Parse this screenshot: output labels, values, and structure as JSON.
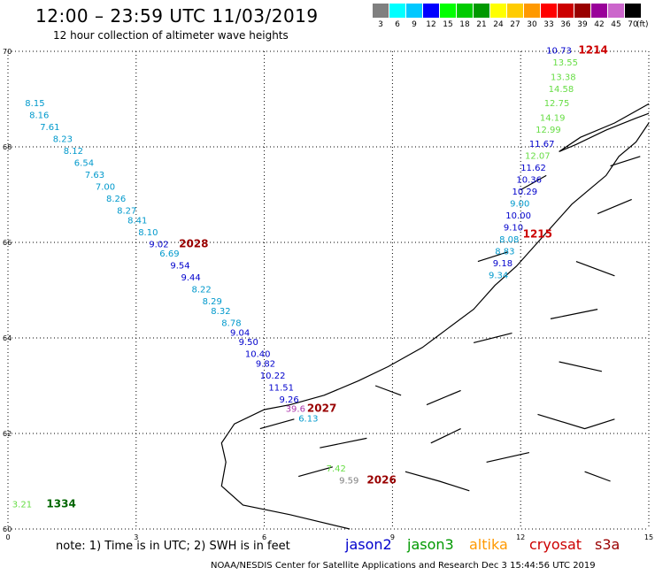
{
  "header": {
    "title": "12:00 – 23:59 UTC 11/03/2019",
    "subtitle": "12 hour collection of altimeter wave heights"
  },
  "legend": {
    "unit_label": "(ft)",
    "bins": [
      {
        "label": "3",
        "color": "#808080"
      },
      {
        "label": "6",
        "color": "#00ffff"
      },
      {
        "label": "9",
        "color": "#00c8ff"
      },
      {
        "label": "12",
        "color": "#0000ff"
      },
      {
        "label": "15",
        "color": "#00ff00"
      },
      {
        "label": "18",
        "color": "#00cc00"
      },
      {
        "label": "21",
        "color": "#009900"
      },
      {
        "label": "24",
        "color": "#ffff00"
      },
      {
        "label": "27",
        "color": "#ffcc00"
      },
      {
        "label": "30",
        "color": "#ff9900"
      },
      {
        "label": "33",
        "color": "#ff0000"
      },
      {
        "label": "36",
        "color": "#cc0000"
      },
      {
        "label": "39",
        "color": "#990000"
      },
      {
        "label": "42",
        "color": "#990099"
      },
      {
        "label": "45",
        "color": "#cc66cc"
      },
      {
        "label": "70",
        "color": "#000000"
      }
    ]
  },
  "axes": {
    "x_ticks": [
      "0",
      "3",
      "6",
      "9",
      "12",
      "15"
    ],
    "y_ticks": [
      "60",
      "62",
      "64",
      "66",
      "68",
      "70"
    ],
    "lon_range": [
      0,
      15
    ],
    "lat_range": [
      60,
      70
    ]
  },
  "tracks": {
    "pass_west": {
      "color": "#0099cc",
      "points": [
        {
          "lon": 0.4,
          "lat": 68.85,
          "v": "8.15",
          "color": "#0099cc"
        },
        {
          "lon": 0.5,
          "lat": 68.6,
          "v": "8.16",
          "color": "#0099cc"
        },
        {
          "lon": 0.75,
          "lat": 68.35,
          "v": "7.61",
          "color": "#0099cc"
        },
        {
          "lon": 1.05,
          "lat": 68.1,
          "v": "8.23",
          "color": "#0099cc"
        },
        {
          "lon": 1.3,
          "lat": 67.85,
          "v": "8.12",
          "color": "#0099cc"
        },
        {
          "lon": 1.55,
          "lat": 67.6,
          "v": "6.54",
          "color": "#0099cc"
        },
        {
          "lon": 1.8,
          "lat": 67.35,
          "v": "7.63",
          "color": "#0099cc"
        },
        {
          "lon": 2.05,
          "lat": 67.1,
          "v": "7.00",
          "color": "#0099cc"
        },
        {
          "lon": 2.3,
          "lat": 66.85,
          "v": "8.26",
          "color": "#0099cc"
        },
        {
          "lon": 2.55,
          "lat": 66.6,
          "v": "8.27",
          "color": "#0099cc"
        },
        {
          "lon": 2.8,
          "lat": 66.4,
          "v": "8.41",
          "color": "#0099cc"
        },
        {
          "lon": 3.05,
          "lat": 66.15,
          "v": "8.10",
          "color": "#0099cc"
        },
        {
          "lon": 3.3,
          "lat": 65.9,
          "v": "9.02",
          "color": "#0000cc"
        },
        {
          "lon": 3.55,
          "lat": 65.7,
          "v": "6.69",
          "color": "#0099cc"
        },
        {
          "lon": 3.8,
          "lat": 65.45,
          "v": "9.54",
          "color": "#0000cc"
        },
        {
          "lon": 4.05,
          "lat": 65.2,
          "v": "9.44",
          "color": "#0000cc"
        },
        {
          "lon": 4.3,
          "lat": 64.95,
          "v": "8.22",
          "color": "#0099cc"
        },
        {
          "lon": 4.55,
          "lat": 64.7,
          "v": "8.29",
          "color": "#0099cc"
        },
        {
          "lon": 4.75,
          "lat": 64.5,
          "v": "8.32",
          "color": "#0099cc"
        },
        {
          "lon": 5.0,
          "lat": 64.25,
          "v": "8.78",
          "color": "#0099cc"
        },
        {
          "lon": 5.2,
          "lat": 64.05,
          "v": "9.04",
          "color": "#0000cc"
        },
        {
          "lon": 5.4,
          "lat": 63.85,
          "v": "9.50",
          "color": "#0000cc"
        },
        {
          "lon": 5.55,
          "lat": 63.6,
          "v": "10.40",
          "color": "#0000cc"
        },
        {
          "lon": 5.8,
          "lat": 63.4,
          "v": "9.82",
          "color": "#0000cc"
        },
        {
          "lon": 5.9,
          "lat": 63.15,
          "v": "10.22",
          "color": "#0000cc"
        },
        {
          "lon": 6.1,
          "lat": 62.9,
          "v": "11.51",
          "color": "#0000cc"
        },
        {
          "lon": 6.35,
          "lat": 62.65,
          "v": "9.26",
          "color": "#0000cc"
        },
        {
          "lon": 6.5,
          "lat": 62.45,
          "v": "39.6",
          "color": "#aa33aa"
        },
        {
          "lon": 6.8,
          "lat": 62.25,
          "v": "6.13",
          "color": "#0099cc"
        }
      ]
    },
    "pass_east": {
      "points": [
        {
          "lon": 12.6,
          "lat": 69.95,
          "v": "10.73",
          "color": "#0000cc"
        },
        {
          "lon": 12.75,
          "lat": 69.7,
          "v": "13.55",
          "color": "#66dd44"
        },
        {
          "lon": 12.7,
          "lat": 69.4,
          "v": "13.38",
          "color": "#66dd44"
        },
        {
          "lon": 12.65,
          "lat": 69.15,
          "v": "14.58",
          "color": "#66dd44"
        },
        {
          "lon": 12.55,
          "lat": 68.85,
          "v": "12.75",
          "color": "#66dd44"
        },
        {
          "lon": 12.45,
          "lat": 68.55,
          "v": "14.19",
          "color": "#66dd44"
        },
        {
          "lon": 12.35,
          "lat": 68.3,
          "v": "12.99",
          "color": "#66dd44"
        },
        {
          "lon": 12.2,
          "lat": 68.0,
          "v": "11.67",
          "color": "#0000cc"
        },
        {
          "lon": 12.1,
          "lat": 67.75,
          "v": "12.07",
          "color": "#66dd44"
        },
        {
          "lon": 12.0,
          "lat": 67.5,
          "v": "11.62",
          "color": "#0000cc"
        },
        {
          "lon": 11.9,
          "lat": 67.25,
          "v": "10.36",
          "color": "#0000cc"
        },
        {
          "lon": 11.8,
          "lat": 67.0,
          "v": "10.29",
          "color": "#0000cc"
        },
        {
          "lon": 11.75,
          "lat": 66.75,
          "v": "9.00",
          "color": "#0099cc"
        },
        {
          "lon": 11.65,
          "lat": 66.5,
          "v": "10.00",
          "color": "#0000cc"
        },
        {
          "lon": 11.6,
          "lat": 66.25,
          "v": "9.10",
          "color": "#0000cc"
        },
        {
          "lon": 11.5,
          "lat": 66.0,
          "v": "8.08",
          "color": "#0099cc"
        },
        {
          "lon": 11.4,
          "lat": 65.75,
          "v": "8.83",
          "color": "#0099cc"
        },
        {
          "lon": 11.35,
          "lat": 65.5,
          "v": "9.18",
          "color": "#0000cc"
        },
        {
          "lon": 11.25,
          "lat": 65.25,
          "v": "9.34",
          "color": "#0099cc"
        }
      ]
    },
    "misc": [
      {
        "lon": 0.1,
        "lat": 60.45,
        "v": "3.21",
        "color": "#66dd44"
      },
      {
        "lon": 7.45,
        "lat": 61.2,
        "v": "7.42",
        "color": "#66dd44"
      },
      {
        "lon": 7.75,
        "lat": 60.95,
        "v": "9.59",
        "color": "#808080"
      }
    ]
  },
  "time_labels": [
    {
      "lon": 13.35,
      "lat": 69.95,
      "text": "1214",
      "color": "#cc0000"
    },
    {
      "lon": 12.05,
      "lat": 66.1,
      "text": "1215",
      "color": "#cc0000"
    },
    {
      "lon": 4.0,
      "lat": 65.9,
      "text": "2028",
      "color": "#990000"
    },
    {
      "lon": 7.0,
      "lat": 62.45,
      "text": "2027",
      "color": "#990000"
    },
    {
      "lon": 8.4,
      "lat": 60.95,
      "text": "2026",
      "color": "#990000"
    },
    {
      "lon": 0.9,
      "lat": 60.45,
      "text": "1334",
      "color": "#006600"
    }
  ],
  "footer": {
    "note": "note: 1) Time is in UTC; 2) SWH is in feet",
    "satellites": [
      {
        "name": "jason2",
        "color": "#0000cc"
      },
      {
        "name": "jason3",
        "color": "#009900"
      },
      {
        "name": "altika",
        "color": "#ff9900"
      },
      {
        "name": "cryosat",
        "color": "#cc0000"
      },
      {
        "name": "s3a",
        "color": "#990000"
      }
    ],
    "credit": "NOAA/NESDIS Center for Satellite Applications and Research   Dec  3 15:44:56 UTC 2019"
  }
}
